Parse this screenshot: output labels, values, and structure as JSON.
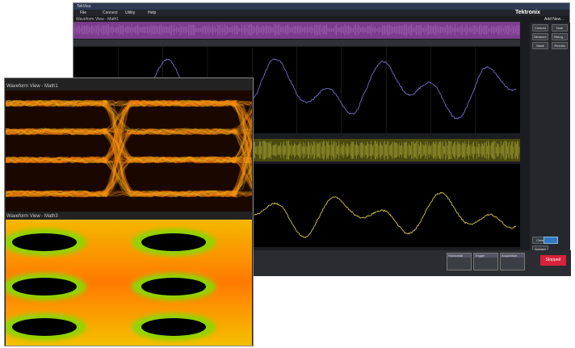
{
  "window": {
    "title": "TekVisu",
    "menu": [
      "File",
      "Connect",
      "Utility",
      "Help"
    ],
    "brand": "Tektronix",
    "add_new": "Add New...",
    "view_title": "Waveform View - Math1"
  },
  "sidebar": {
    "buttons": [
      "Cursors",
      "Note",
      "Measure",
      "Histog...",
      "Mask",
      "Results Table"
    ],
    "clear": "Clear",
    "autoset": "Autoset"
  },
  "status": {
    "badges": [
      "Horizontal",
      "Trigger",
      "Acquisition"
    ],
    "run": "Stopped"
  },
  "popout": {
    "views": [
      "Waveform View - Math1",
      "Waveform View - Math3"
    ]
  }
}
